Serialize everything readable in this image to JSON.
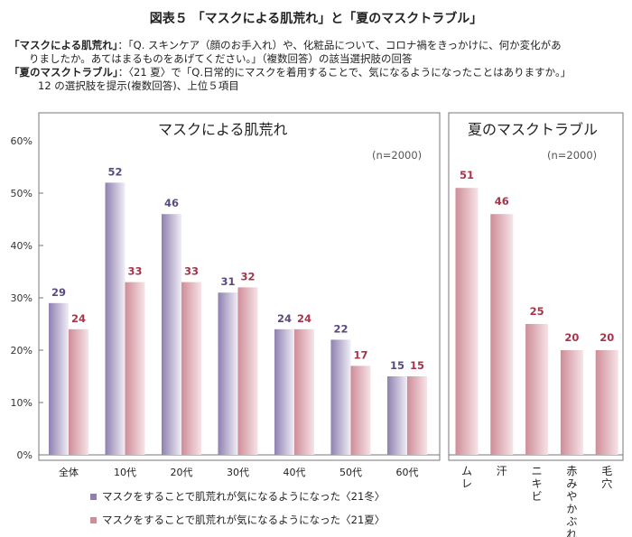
{
  "title": "図表５ 「マスクによる肌荒れ」と「夏のマスクトラブル」",
  "notes": [
    {
      "bold": "「マスクによる肌荒れ」",
      "text": "：「Q. スキンケア（顔のお手入れ）や、化粧品について、コロナ禍をきっかけに、何か変化があ"
    },
    {
      "bold": "",
      "text": "りましたか。あてはまるものをあげてください。」（複数回答）の該当選択肢の回答"
    },
    {
      "bold": "「夏のマスクトラブル」",
      "text": "：〈21 夏〉で「Q.日常的にマスクを着用することで、気になるようになったことはありますか。」"
    },
    {
      "bold": "",
      "text": "12 の選択肢を提示(複数回答)、上位５項目"
    }
  ],
  "colors": {
    "winter": "#8f80b0",
    "summer": "#cf8d98",
    "winter_label": "#5b4a80",
    "summer_label": "#a8344a"
  },
  "chart_data": [
    {
      "type": "bar",
      "title": "マスクによる肌荒れ",
      "n_label": "(n=2000)",
      "ylim": [
        0,
        60
      ],
      "yticks": [
        "0%",
        "10%",
        "20%",
        "30%",
        "40%",
        "50%",
        "60%"
      ],
      "categories": [
        "全体",
        "10代",
        "20代",
        "30代",
        "40代",
        "50代",
        "60代"
      ],
      "series": [
        {
          "name": "マスクをすることで肌荒れが気になるようになった〈21冬〉",
          "values": [
            29,
            52,
            46,
            31,
            24,
            22,
            15
          ]
        },
        {
          "name": "マスクをすることで肌荒れが気になるようになった〈21夏〉",
          "values": [
            24,
            33,
            33,
            32,
            24,
            17,
            15
          ]
        }
      ]
    },
    {
      "type": "bar",
      "title": "夏のマスクトラブル",
      "n_label": "(n=2000)",
      "ylim": [
        0,
        60
      ],
      "categories": [
        "ムレ",
        "汗",
        "ニキビ",
        "赤みやかぶれ",
        "毛穴"
      ],
      "series": [
        {
          "values": [
            51,
            46,
            25,
            20,
            20
          ]
        }
      ]
    }
  ]
}
